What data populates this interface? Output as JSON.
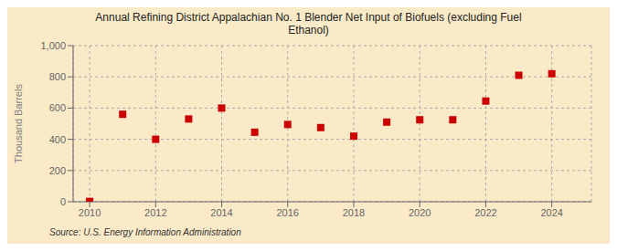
{
  "chart_data": {
    "type": "scatter",
    "title": "Annual Refining District Appalachian No. 1 Blender Net Input of Biofuels (excluding Fuel\nEthanol)",
    "ylabel": "Thousand Barrels",
    "annotations": [
      "Source: U.S. Energy Information Administration"
    ],
    "x": [
      2010,
      2011,
      2012,
      2013,
      2014,
      2015,
      2016,
      2017,
      2018,
      2019,
      2020,
      2021,
      2022,
      2023,
      2024
    ],
    "values": [
      2,
      560,
      400,
      530,
      600,
      445,
      495,
      475,
      420,
      510,
      525,
      525,
      645,
      810,
      820
    ],
    "color": "#cc0000",
    "marker": "square",
    "xlim": [
      2009.5,
      2025.2
    ],
    "xticks": [
      2010,
      2012,
      2014,
      2016,
      2018,
      2020,
      2022,
      2024
    ],
    "ylim": [
      0,
      1000
    ],
    "yticks": [
      0,
      200,
      400,
      600,
      800,
      {
        "value": 1000,
        "label": "1,000"
      }
    ],
    "grid": true
  }
}
